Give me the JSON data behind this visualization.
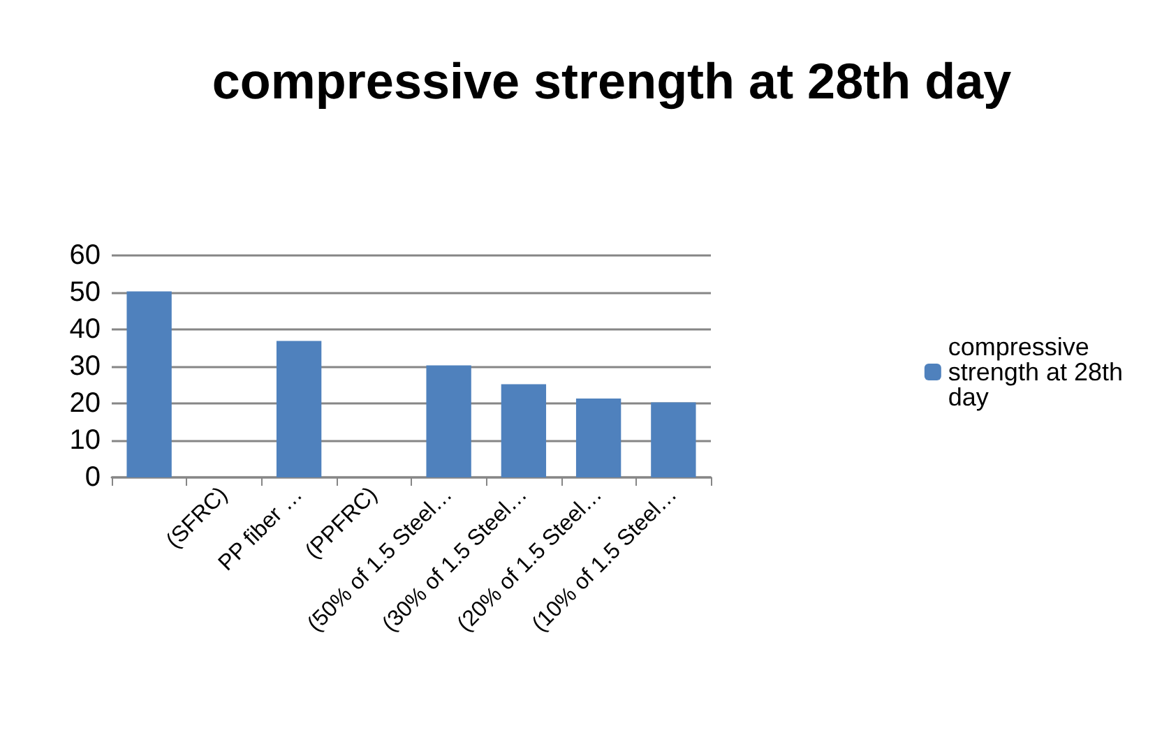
{
  "chart_data": {
    "type": "bar",
    "title": "compressive strength at 28th day",
    "categories": [
      null,
      "(SFRC)",
      "PP fiber …",
      "(PPFRC)",
      "(50% of 1.5 Steel…",
      "(30% of 1.5 Steel…",
      "(20% of 1.5 Steel…",
      "(10% of 1.5 Steel…"
    ],
    "series": [
      {
        "name": "compressive strength at 28th day",
        "color": "#4f81bd",
        "values": [
          50.3,
          null,
          36.9,
          null,
          30.3,
          25.2,
          21.3,
          20.3
        ]
      }
    ],
    "ylim": [
      0,
      60
    ],
    "yticks": [
      0,
      10,
      20,
      30,
      40,
      50,
      60
    ],
    "grid": "y",
    "legend": "right"
  }
}
